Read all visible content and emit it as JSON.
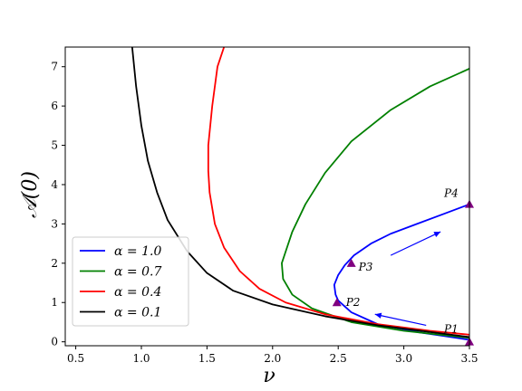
{
  "chart_data": {
    "type": "line",
    "xlabel": "ν",
    "ylabel": "𝒜(0)",
    "xlim": [
      0.42,
      3.5
    ],
    "ylim": [
      -0.1,
      7.5
    ],
    "xticks": [
      0.5,
      1.0,
      1.5,
      2.0,
      2.5,
      3.0,
      3.5
    ],
    "xtick_labels": [
      "0.5",
      "1.0",
      "1.5",
      "2.0",
      "2.5",
      "3.0",
      "3.5"
    ],
    "yticks": [
      0,
      1,
      2,
      3,
      4,
      5,
      6,
      7
    ],
    "ytick_labels": [
      "0",
      "1",
      "2",
      "3",
      "4",
      "5",
      "6",
      "7"
    ],
    "grid": false,
    "legend_position": "lower-left",
    "series": [
      {
        "name": "α = 1.0",
        "color": "#0000ff",
        "points": [
          [
            3.5,
            3.5
          ],
          [
            3.3,
            3.25
          ],
          [
            3.1,
            3.0
          ],
          [
            2.9,
            2.75
          ],
          [
            2.75,
            2.5
          ],
          [
            2.62,
            2.2
          ],
          [
            2.55,
            1.95
          ],
          [
            2.5,
            1.7
          ],
          [
            2.47,
            1.45
          ],
          [
            2.48,
            1.2
          ],
          [
            2.5,
            1.05
          ],
          [
            2.6,
            0.75
          ],
          [
            2.8,
            0.45
          ],
          [
            3.1,
            0.25
          ],
          [
            3.3,
            0.15
          ],
          [
            3.5,
            0.05
          ]
        ]
      },
      {
        "name": "α = 0.7",
        "color": "#008000",
        "points": [
          [
            3.5,
            6.95
          ],
          [
            3.2,
            6.5
          ],
          [
            2.9,
            5.9
          ],
          [
            2.6,
            5.1
          ],
          [
            2.4,
            4.3
          ],
          [
            2.25,
            3.5
          ],
          [
            2.15,
            2.8
          ],
          [
            2.09,
            2.2
          ],
          [
            2.07,
            2.0
          ],
          [
            2.08,
            1.6
          ],
          [
            2.15,
            1.2
          ],
          [
            2.3,
            0.85
          ],
          [
            2.6,
            0.5
          ],
          [
            3.0,
            0.28
          ],
          [
            3.5,
            0.1
          ]
        ]
      },
      {
        "name": "α = 0.4",
        "color": "#ff0000",
        "points": [
          [
            1.63,
            7.5
          ],
          [
            1.58,
            7.0
          ],
          [
            1.54,
            6.0
          ],
          [
            1.51,
            5.0
          ],
          [
            1.51,
            4.35
          ],
          [
            1.52,
            3.8
          ],
          [
            1.56,
            3.0
          ],
          [
            1.63,
            2.4
          ],
          [
            1.75,
            1.8
          ],
          [
            1.9,
            1.35
          ],
          [
            2.1,
            1.0
          ],
          [
            2.4,
            0.7
          ],
          [
            2.8,
            0.45
          ],
          [
            3.2,
            0.28
          ],
          [
            3.5,
            0.18
          ]
        ]
      },
      {
        "name": "α = 0.1",
        "color": "#000000",
        "points": [
          [
            0.93,
            7.5
          ],
          [
            0.96,
            6.5
          ],
          [
            1.0,
            5.5
          ],
          [
            1.05,
            4.6
          ],
          [
            1.12,
            3.8
          ],
          [
            1.2,
            3.1
          ],
          [
            1.35,
            2.3
          ],
          [
            1.5,
            1.75
          ],
          [
            1.7,
            1.3
          ],
          [
            2.0,
            0.95
          ],
          [
            2.4,
            0.65
          ],
          [
            2.8,
            0.42
          ],
          [
            3.2,
            0.25
          ],
          [
            3.5,
            0.12
          ]
        ]
      }
    ],
    "markers": [
      {
        "label": "P1",
        "x": 3.5,
        "y": 0.0,
        "color": "#800080"
      },
      {
        "label": "P2",
        "x": 2.49,
        "y": 1.0,
        "color": "#800080"
      },
      {
        "label": "P3",
        "x": 2.6,
        "y": 2.0,
        "color": "#800080"
      },
      {
        "label": "P4",
        "x": 3.5,
        "y": 3.5,
        "color": "#800080"
      }
    ],
    "arrows": [
      {
        "from": [
          2.9,
          2.2
        ],
        "to": [
          3.28,
          2.8
        ],
        "color": "#0000ff"
      },
      {
        "from": [
          3.17,
          0.42
        ],
        "to": [
          2.78,
          0.7
        ],
        "color": "#0000ff"
      }
    ]
  }
}
